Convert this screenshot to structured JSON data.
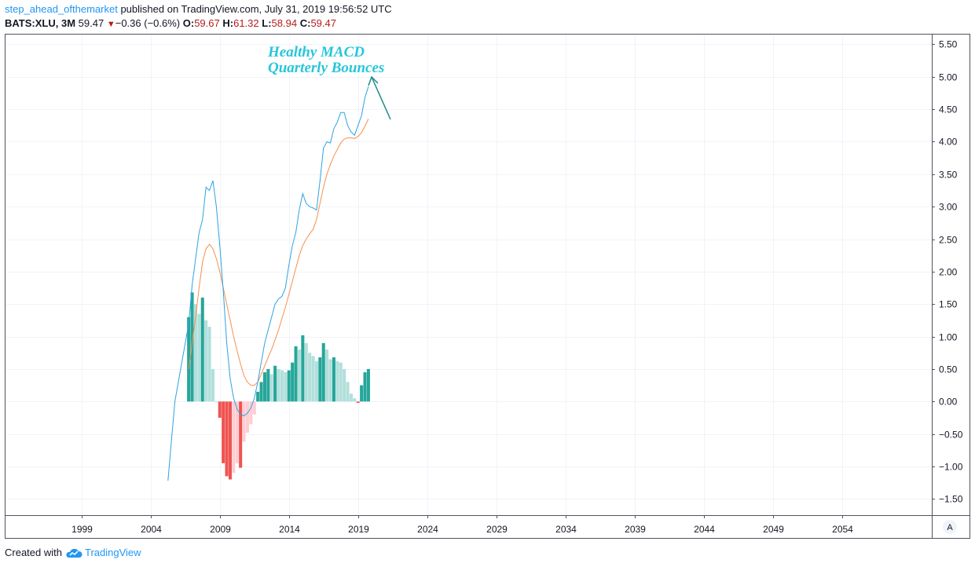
{
  "header": {
    "author": "step_ahead_ofthemarket",
    "published": " published on TradingView.com, July 31, 2019 19:56:52 UTC",
    "symbol": "BATS:XLU, 3M",
    "last": "59.47",
    "change": "−0.36 (−0.6%)",
    "o_label": "O:",
    "o_value": "59.67",
    "h_label": "H:",
    "h_value": "61.32",
    "l_label": "L:",
    "l_value": "58.94",
    "c_label": "C:",
    "c_value": "59.47",
    "down_arrow_icon": "triangle-down-icon"
  },
  "footer": {
    "created_with": "Created with",
    "brand": "TradingView",
    "logo_icon": "tradingview-cloud-icon"
  },
  "chart_data": {
    "type": "macd",
    "annotation": [
      "Healthy MACD",
      "Quarterly Bounces"
    ],
    "scale_button": "A",
    "x_tick_labels": [
      "1999",
      "2004",
      "2009",
      "2014",
      "2019",
      "2024",
      "2029",
      "2034",
      "2039",
      "2044",
      "2049",
      "2054"
    ],
    "y_tick_labels": [
      "5.50",
      "5.00",
      "4.50",
      "4.00",
      "3.50",
      "3.00",
      "2.50",
      "2.00",
      "1.50",
      "1.00",
      "0.50",
      "0.00",
      "−0.50",
      "−1.00",
      "−1.50"
    ],
    "xlim": [
      1993.5,
      2060.5
    ],
    "ylim": [
      -1.75,
      5.65
    ],
    "grid": true,
    "colors": {
      "macd": "#2da2e3",
      "signal": "#f5914a",
      "hist_up_strong": "#26a69a",
      "hist_up_weak": "#b2dfdb",
      "hist_down_strong": "#ef5350",
      "hist_down_weak": "#ffcdd2",
      "annotation": "#26c6da",
      "arrow": "#1e8c86"
    },
    "macd_line": [
      [
        2005.25,
        -1.22
      ],
      [
        2005.5,
        -0.6
      ],
      [
        2005.75,
        0.0
      ],
      [
        2006.0,
        0.3
      ],
      [
        2006.25,
        0.6
      ],
      [
        2006.5,
        0.9
      ],
      [
        2006.75,
        1.2
      ],
      [
        2007.0,
        1.8
      ],
      [
        2007.25,
        2.2
      ],
      [
        2007.5,
        2.6
      ],
      [
        2007.75,
        2.8
      ],
      [
        2008.0,
        3.3
      ],
      [
        2008.25,
        3.25
      ],
      [
        2008.5,
        3.4
      ],
      [
        2008.75,
        3.0
      ],
      [
        2009.0,
        2.4
      ],
      [
        2009.25,
        1.7
      ],
      [
        2009.5,
        0.9
      ],
      [
        2009.75,
        0.35
      ],
      [
        2010.0,
        0.05
      ],
      [
        2010.25,
        -0.12
      ],
      [
        2010.5,
        -0.2
      ],
      [
        2010.75,
        -0.22
      ],
      [
        2011.0,
        -0.18
      ],
      [
        2011.25,
        -0.1
      ],
      [
        2011.5,
        0.05
      ],
      [
        2011.75,
        0.3
      ],
      [
        2012.0,
        0.6
      ],
      [
        2012.25,
        0.9
      ],
      [
        2012.5,
        1.1
      ],
      [
        2012.75,
        1.3
      ],
      [
        2013.0,
        1.5
      ],
      [
        2013.25,
        1.58
      ],
      [
        2013.5,
        1.62
      ],
      [
        2013.75,
        1.75
      ],
      [
        2014.0,
        2.1
      ],
      [
        2014.25,
        2.4
      ],
      [
        2014.5,
        2.6
      ],
      [
        2014.75,
        2.95
      ],
      [
        2015.0,
        3.2
      ],
      [
        2015.25,
        3.05
      ],
      [
        2015.5,
        3.0
      ],
      [
        2015.75,
        2.98
      ],
      [
        2016.0,
        2.95
      ],
      [
        2016.25,
        3.4
      ],
      [
        2016.5,
        3.9
      ],
      [
        2016.75,
        4.0
      ],
      [
        2017.0,
        3.98
      ],
      [
        2017.25,
        4.2
      ],
      [
        2017.5,
        4.3
      ],
      [
        2017.75,
        4.45
      ],
      [
        2018.0,
        4.45
      ],
      [
        2018.25,
        4.25
      ],
      [
        2018.5,
        4.15
      ],
      [
        2018.75,
        4.1
      ],
      [
        2019.0,
        4.25
      ],
      [
        2019.25,
        4.4
      ],
      [
        2019.5,
        4.68
      ],
      [
        2019.75,
        4.85
      ]
    ],
    "signal_line": [
      [
        2006.75,
        0.5
      ],
      [
        2007.0,
        0.9
      ],
      [
        2007.25,
        1.3
      ],
      [
        2007.5,
        1.75
      ],
      [
        2007.75,
        2.15
      ],
      [
        2008.0,
        2.35
      ],
      [
        2008.25,
        2.42
      ],
      [
        2008.5,
        2.35
      ],
      [
        2008.75,
        2.2
      ],
      [
        2009.0,
        2.0
      ],
      [
        2009.25,
        1.75
      ],
      [
        2009.5,
        1.5
      ],
      [
        2009.75,
        1.25
      ],
      [
        2010.0,
        1.0
      ],
      [
        2010.25,
        0.78
      ],
      [
        2010.5,
        0.58
      ],
      [
        2010.75,
        0.4
      ],
      [
        2011.0,
        0.3
      ],
      [
        2011.25,
        0.25
      ],
      [
        2011.5,
        0.25
      ],
      [
        2011.75,
        0.3
      ],
      [
        2012.0,
        0.42
      ],
      [
        2012.25,
        0.55
      ],
      [
        2012.5,
        0.68
      ],
      [
        2012.75,
        0.8
      ],
      [
        2013.0,
        0.95
      ],
      [
        2013.25,
        1.1
      ],
      [
        2013.5,
        1.28
      ],
      [
        2013.75,
        1.45
      ],
      [
        2014.0,
        1.65
      ],
      [
        2014.25,
        1.85
      ],
      [
        2014.5,
        2.05
      ],
      [
        2014.75,
        2.25
      ],
      [
        2015.0,
        2.4
      ],
      [
        2015.25,
        2.5
      ],
      [
        2015.5,
        2.58
      ],
      [
        2015.75,
        2.65
      ],
      [
        2016.0,
        2.8
      ],
      [
        2016.25,
        3.05
      ],
      [
        2016.5,
        3.3
      ],
      [
        2016.75,
        3.5
      ],
      [
        2017.0,
        3.65
      ],
      [
        2017.25,
        3.78
      ],
      [
        2017.5,
        3.88
      ],
      [
        2017.75,
        3.98
      ],
      [
        2018.0,
        4.04
      ],
      [
        2018.25,
        4.06
      ],
      [
        2018.5,
        4.06
      ],
      [
        2018.75,
        4.05
      ],
      [
        2019.0,
        4.08
      ],
      [
        2019.25,
        4.14
      ],
      [
        2019.5,
        4.24
      ],
      [
        2019.75,
        4.35
      ]
    ],
    "histogram": [
      [
        2006.75,
        1.3
      ],
      [
        2007.0,
        1.68
      ],
      [
        2007.25,
        1.5
      ],
      [
        2007.5,
        1.35
      ],
      [
        2007.75,
        1.6
      ],
      [
        2008.0,
        1.25
      ],
      [
        2008.25,
        1.15
      ],
      [
        2008.5,
        0.5
      ],
      [
        2008.75,
        0.0
      ],
      [
        2009.0,
        -0.25
      ],
      [
        2009.25,
        -0.95
      ],
      [
        2009.5,
        -1.15
      ],
      [
        2009.75,
        -1.2
      ],
      [
        2010.0,
        -1.1
      ],
      [
        2010.25,
        -0.95
      ],
      [
        2010.5,
        -1.02
      ],
      [
        2010.75,
        -0.62
      ],
      [
        2011.0,
        -0.48
      ],
      [
        2011.25,
        -0.35
      ],
      [
        2011.5,
        -0.2
      ],
      [
        2011.75,
        0.15
      ],
      [
        2012.0,
        0.3
      ],
      [
        2012.25,
        0.45
      ],
      [
        2012.5,
        0.5
      ],
      [
        2012.75,
        0.42
      ],
      [
        2013.0,
        0.55
      ],
      [
        2013.25,
        0.5
      ],
      [
        2013.5,
        0.48
      ],
      [
        2013.75,
        0.45
      ],
      [
        2014.0,
        0.48
      ],
      [
        2014.25,
        0.6
      ],
      [
        2014.5,
        0.85
      ],
      [
        2014.75,
        0.8
      ],
      [
        2015.0,
        1.02
      ],
      [
        2015.25,
        0.9
      ],
      [
        2015.5,
        0.75
      ],
      [
        2015.75,
        0.7
      ],
      [
        2016.0,
        0.62
      ],
      [
        2016.25,
        0.68
      ],
      [
        2016.5,
        0.9
      ],
      [
        2016.75,
        0.8
      ],
      [
        2017.0,
        0.65
      ],
      [
        2017.25,
        0.68
      ],
      [
        2017.5,
        0.62
      ],
      [
        2017.75,
        0.6
      ],
      [
        2018.0,
        0.5
      ],
      [
        2018.25,
        0.3
      ],
      [
        2018.5,
        0.12
      ],
      [
        2018.75,
        0.05
      ],
      [
        2019.0,
        -0.02
      ],
      [
        2019.25,
        0.25
      ],
      [
        2019.5,
        0.45
      ],
      [
        2019.75,
        0.5
      ]
    ]
  }
}
